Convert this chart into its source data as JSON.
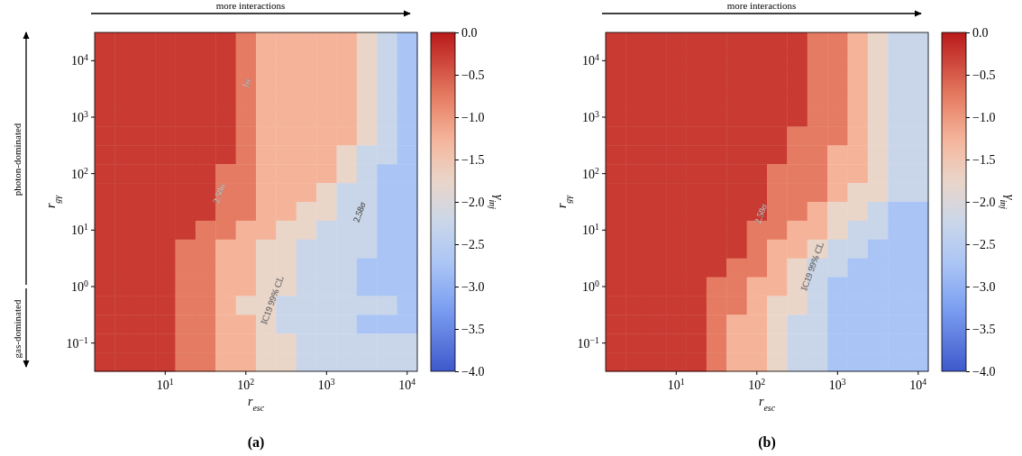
{
  "chart_data": [
    {
      "type": "heatmap",
      "title": "(a)",
      "xlabel": "r$_{esc}$",
      "ylabel": "r$_{gγ}$",
      "clabel": "γ$_{inj}$",
      "clim": [
        -4,
        0
      ],
      "cticks": [
        {
          "value": -4,
          "label": "−4.0"
        },
        {
          "value": -3.5,
          "label": "−3.5"
        },
        {
          "value": -3,
          "label": "−3.0"
        },
        {
          "value": -2.5,
          "label": "−2.5"
        },
        {
          "value": -2,
          "label": "−2.0"
        },
        {
          "value": -1.5,
          "label": "−1.5"
        },
        {
          "value": -1,
          "label": "−1.0"
        },
        {
          "value": -0.5,
          "label": "−0.5"
        },
        {
          "value": 0,
          "label": "0.0"
        }
      ],
      "categories": [
        null,
        null,
        null,
        "10$^{1}$",
        null,
        null,
        null,
        "10$^{2}$",
        null,
        null,
        null,
        "10$^{3}$",
        null,
        null,
        null,
        "10$^{4}$"
      ],
      "y_categories": [
        null,
        "10$^{4}$",
        null,
        null,
        "10$^{3}$",
        null,
        null,
        "10$^{2}$",
        null,
        null,
        "10$^{1}$",
        null,
        null,
        "10$^{0}$",
        null,
        null,
        "10$^{−1}$",
        null
      ],
      "cells": [
        [
          -0.25,
          -0.25,
          -0.25,
          -0.25,
          -0.25,
          -0.25,
          -0.25,
          -0.75,
          -1.25,
          -1.25,
          -1.25,
          -1.25,
          -1.25,
          -1.75,
          -2.25,
          -2.75
        ],
        [
          -0.25,
          -0.25,
          -0.25,
          -0.25,
          -0.25,
          -0.25,
          -0.25,
          -0.75,
          -1.25,
          -1.25,
          -1.25,
          -1.25,
          -1.25,
          -1.75,
          -2.25,
          -2.75
        ],
        [
          -0.25,
          -0.25,
          -0.25,
          -0.25,
          -0.25,
          -0.25,
          -0.25,
          -0.75,
          -1.25,
          -1.25,
          -1.25,
          -1.25,
          -1.25,
          -1.75,
          -2.25,
          -2.75
        ],
        [
          -0.25,
          -0.25,
          -0.25,
          -0.25,
          -0.25,
          -0.25,
          -0.25,
          -0.75,
          -1.25,
          -1.25,
          -1.25,
          -1.25,
          -1.25,
          -1.75,
          -2.25,
          -2.75
        ],
        [
          -0.25,
          -0.25,
          -0.25,
          -0.25,
          -0.25,
          -0.25,
          -0.25,
          -0.75,
          -1.25,
          -1.25,
          -1.25,
          -1.25,
          -1.25,
          -1.75,
          -2.25,
          -2.75
        ],
        [
          -0.25,
          -0.25,
          -0.25,
          -0.25,
          -0.25,
          -0.25,
          -0.25,
          -0.75,
          -1.25,
          -1.25,
          -1.25,
          -1.25,
          -1.25,
          -1.75,
          -2.25,
          -2.75
        ],
        [
          -0.25,
          -0.25,
          -0.25,
          -0.25,
          -0.25,
          -0.25,
          -0.25,
          -0.75,
          -1.25,
          -1.25,
          -1.25,
          -1.25,
          -1.75,
          -2.25,
          -2.25,
          -2.75
        ],
        [
          -0.25,
          -0.25,
          -0.25,
          -0.25,
          -0.25,
          -0.25,
          -0.75,
          -0.75,
          -1.25,
          -1.25,
          -1.25,
          -1.25,
          -1.75,
          -2.25,
          -2.75,
          -2.75
        ],
        [
          -0.25,
          -0.25,
          -0.25,
          -0.25,
          -0.25,
          -0.25,
          -0.75,
          -0.75,
          -1.25,
          -1.25,
          -1.25,
          -1.75,
          -2.25,
          -2.25,
          -2.75,
          -2.75
        ],
        [
          -0.25,
          -0.25,
          -0.25,
          -0.25,
          -0.25,
          -0.25,
          -0.75,
          -0.75,
          -1.25,
          -1.25,
          -1.75,
          -1.75,
          -2.25,
          -2.25,
          -2.75,
          -2.75
        ],
        [
          -0.25,
          -0.25,
          -0.25,
          -0.25,
          -0.25,
          -0.75,
          -0.75,
          -1.25,
          -1.25,
          -1.75,
          -1.75,
          -2.25,
          -2.25,
          -2.25,
          -2.75,
          -2.75
        ],
        [
          -0.25,
          -0.25,
          -0.25,
          -0.25,
          -0.75,
          -0.75,
          -1.25,
          -1.25,
          -1.75,
          -1.75,
          -2.25,
          -2.25,
          -2.25,
          -2.25,
          -2.75,
          -2.75
        ],
        [
          -0.25,
          -0.25,
          -0.25,
          -0.25,
          -0.75,
          -0.75,
          -1.25,
          -1.25,
          -1.75,
          -1.75,
          -2.25,
          -2.25,
          -2.25,
          -2.75,
          -2.75,
          -2.75
        ],
        [
          -0.25,
          -0.25,
          -0.25,
          -0.25,
          -0.75,
          -0.75,
          -1.25,
          -1.25,
          -1.75,
          -1.75,
          -2.25,
          -2.25,
          -2.25,
          -2.75,
          -2.75,
          -2.75
        ],
        [
          -0.25,
          -0.25,
          -0.25,
          -0.25,
          -0.75,
          -0.75,
          -1.25,
          -1.75,
          -1.75,
          -2.25,
          -2.25,
          -2.25,
          -2.25,
          -2.25,
          -2.25,
          -2.75
        ],
        [
          -0.25,
          -0.25,
          -0.25,
          -0.25,
          -0.75,
          -0.75,
          -1.25,
          -1.25,
          -1.75,
          -2.25,
          -2.25,
          -2.25,
          -2.25,
          -2.75,
          -2.75,
          -2.75
        ],
        [
          -0.25,
          -0.25,
          -0.25,
          -0.25,
          -0.75,
          -0.75,
          -1.25,
          -1.25,
          -1.75,
          -1.75,
          -2.25,
          -2.25,
          -2.25,
          -2.25,
          -2.25,
          -2.25
        ],
        [
          -0.25,
          -0.25,
          -0.25,
          -0.25,
          -0.75,
          -0.75,
          -1.25,
          -1.25,
          -1.75,
          -1.75,
          -2.25,
          -2.25,
          -2.25,
          -2.25,
          -2.25,
          -2.25
        ]
      ],
      "annotations": [
        "more interactions",
        "photon-dominated",
        "gas-dominated",
        "2.58σ",
        "2.58σ",
        "1σ",
        "IC19 99% CL"
      ]
    },
    {
      "type": "heatmap",
      "title": "(b)",
      "xlabel": "r$_{esc}$",
      "ylabel": "r$_{gγ}$",
      "clabel": "γ$_{inj}$",
      "clim": [
        -4,
        0
      ],
      "cticks": [
        {
          "value": -4,
          "label": "−4.0"
        },
        {
          "value": -3.5,
          "label": "−3.5"
        },
        {
          "value": -3,
          "label": "−3.0"
        },
        {
          "value": -2.5,
          "label": "−2.5"
        },
        {
          "value": -2,
          "label": "−2.0"
        },
        {
          "value": -1.5,
          "label": "−1.5"
        },
        {
          "value": -1,
          "label": "−1.0"
        },
        {
          "value": -0.5,
          "label": "−0.5"
        },
        {
          "value": 0,
          "label": "0.0"
        }
      ],
      "categories": [
        null,
        null,
        null,
        "10$^{1}$",
        null,
        null,
        null,
        "10$^{2}$",
        null,
        null,
        null,
        "10$^{3}$",
        null,
        null,
        null,
        "10$^{4}$"
      ],
      "y_categories": [
        null,
        "10$^{4}$",
        null,
        null,
        "10$^{3}$",
        null,
        null,
        "10$^{2}$",
        null,
        null,
        "10$^{1}$",
        null,
        null,
        "10$^{0}$",
        null,
        null,
        "10$^{−1}$",
        null
      ],
      "cells": [
        [
          -0.25,
          -0.25,
          -0.25,
          -0.25,
          -0.25,
          -0.25,
          -0.25,
          -0.25,
          -0.25,
          -0.25,
          -0.75,
          -0.75,
          -1.25,
          -1.75,
          -2.25,
          -2.25
        ],
        [
          -0.25,
          -0.25,
          -0.25,
          -0.25,
          -0.25,
          -0.25,
          -0.25,
          -0.25,
          -0.25,
          -0.25,
          -0.75,
          -0.75,
          -1.25,
          -1.75,
          -2.25,
          -2.25
        ],
        [
          -0.25,
          -0.25,
          -0.25,
          -0.25,
          -0.25,
          -0.25,
          -0.25,
          -0.25,
          -0.25,
          -0.25,
          -0.75,
          -0.75,
          -1.25,
          -1.75,
          -2.25,
          -2.25
        ],
        [
          -0.25,
          -0.25,
          -0.25,
          -0.25,
          -0.25,
          -0.25,
          -0.25,
          -0.25,
          -0.25,
          -0.25,
          -0.75,
          -0.75,
          -1.25,
          -1.75,
          -2.25,
          -2.25
        ],
        [
          -0.25,
          -0.25,
          -0.25,
          -0.25,
          -0.25,
          -0.25,
          -0.25,
          -0.25,
          -0.25,
          -0.25,
          -0.75,
          -0.75,
          -1.25,
          -1.75,
          -2.25,
          -2.25
        ],
        [
          -0.25,
          -0.25,
          -0.25,
          -0.25,
          -0.25,
          -0.25,
          -0.25,
          -0.25,
          -0.25,
          -0.75,
          -0.75,
          -0.75,
          -1.25,
          -1.75,
          -2.25,
          -2.25
        ],
        [
          -0.25,
          -0.25,
          -0.25,
          -0.25,
          -0.25,
          -0.25,
          -0.25,
          -0.25,
          -0.25,
          -0.75,
          -0.75,
          -1.25,
          -1.25,
          -1.75,
          -2.25,
          -2.25
        ],
        [
          -0.25,
          -0.25,
          -0.25,
          -0.25,
          -0.25,
          -0.25,
          -0.25,
          -0.25,
          -0.75,
          -0.75,
          -0.75,
          -1.25,
          -1.25,
          -1.75,
          -2.25,
          -2.25
        ],
        [
          -0.25,
          -0.25,
          -0.25,
          -0.25,
          -0.25,
          -0.25,
          -0.25,
          -0.25,
          -0.75,
          -0.75,
          -0.75,
          -1.25,
          -1.75,
          -1.75,
          -2.25,
          -2.25
        ],
        [
          -0.25,
          -0.25,
          -0.25,
          -0.25,
          -0.25,
          -0.25,
          -0.25,
          -0.25,
          -0.75,
          -0.75,
          -1.25,
          -1.75,
          -1.75,
          -2.25,
          -2.75,
          -2.75
        ],
        [
          -0.25,
          -0.25,
          -0.25,
          -0.25,
          -0.25,
          -0.25,
          -0.25,
          -0.75,
          -0.75,
          -1.25,
          -1.25,
          -1.75,
          -2.25,
          -2.25,
          -2.75,
          -2.75
        ],
        [
          -0.25,
          -0.25,
          -0.25,
          -0.25,
          -0.25,
          -0.25,
          -0.25,
          -0.75,
          -1.25,
          -1.25,
          -1.75,
          -2.25,
          -2.25,
          -2.75,
          -2.75,
          -2.75
        ],
        [
          -0.25,
          -0.25,
          -0.25,
          -0.25,
          -0.25,
          -0.25,
          -0.75,
          -0.75,
          -1.25,
          -1.75,
          -2.25,
          -2.25,
          -2.75,
          -2.75,
          -2.75,
          -2.75
        ],
        [
          -0.25,
          -0.25,
          -0.25,
          -0.25,
          -0.25,
          -0.75,
          -0.75,
          -1.25,
          -1.25,
          -1.75,
          -2.25,
          -2.75,
          -2.75,
          -2.75,
          -2.75,
          -2.75
        ],
        [
          -0.25,
          -0.25,
          -0.25,
          -0.25,
          -0.25,
          -0.75,
          -0.75,
          -1.25,
          -1.75,
          -1.75,
          -2.25,
          -2.75,
          -2.75,
          -2.75,
          -2.75,
          -2.75
        ],
        [
          -0.25,
          -0.25,
          -0.25,
          -0.25,
          -0.25,
          -0.75,
          -1.25,
          -1.25,
          -1.75,
          -2.25,
          -2.25,
          -2.75,
          -2.75,
          -2.75,
          -2.75,
          -2.75
        ],
        [
          -0.25,
          -0.25,
          -0.25,
          -0.25,
          -0.25,
          -0.75,
          -1.25,
          -1.25,
          -1.75,
          -2.25,
          -2.25,
          -2.75,
          -2.75,
          -2.75,
          -2.75,
          -2.75
        ],
        [
          -0.25,
          -0.25,
          -0.25,
          -0.25,
          -0.25,
          -0.75,
          -1.25,
          -1.25,
          -1.75,
          -2.25,
          -2.25,
          -2.75,
          -2.75,
          -2.75,
          -2.75,
          -2.75
        ]
      ],
      "annotations": [
        "more interactions",
        "2.58σ",
        "IC19 99% CL"
      ]
    }
  ]
}
